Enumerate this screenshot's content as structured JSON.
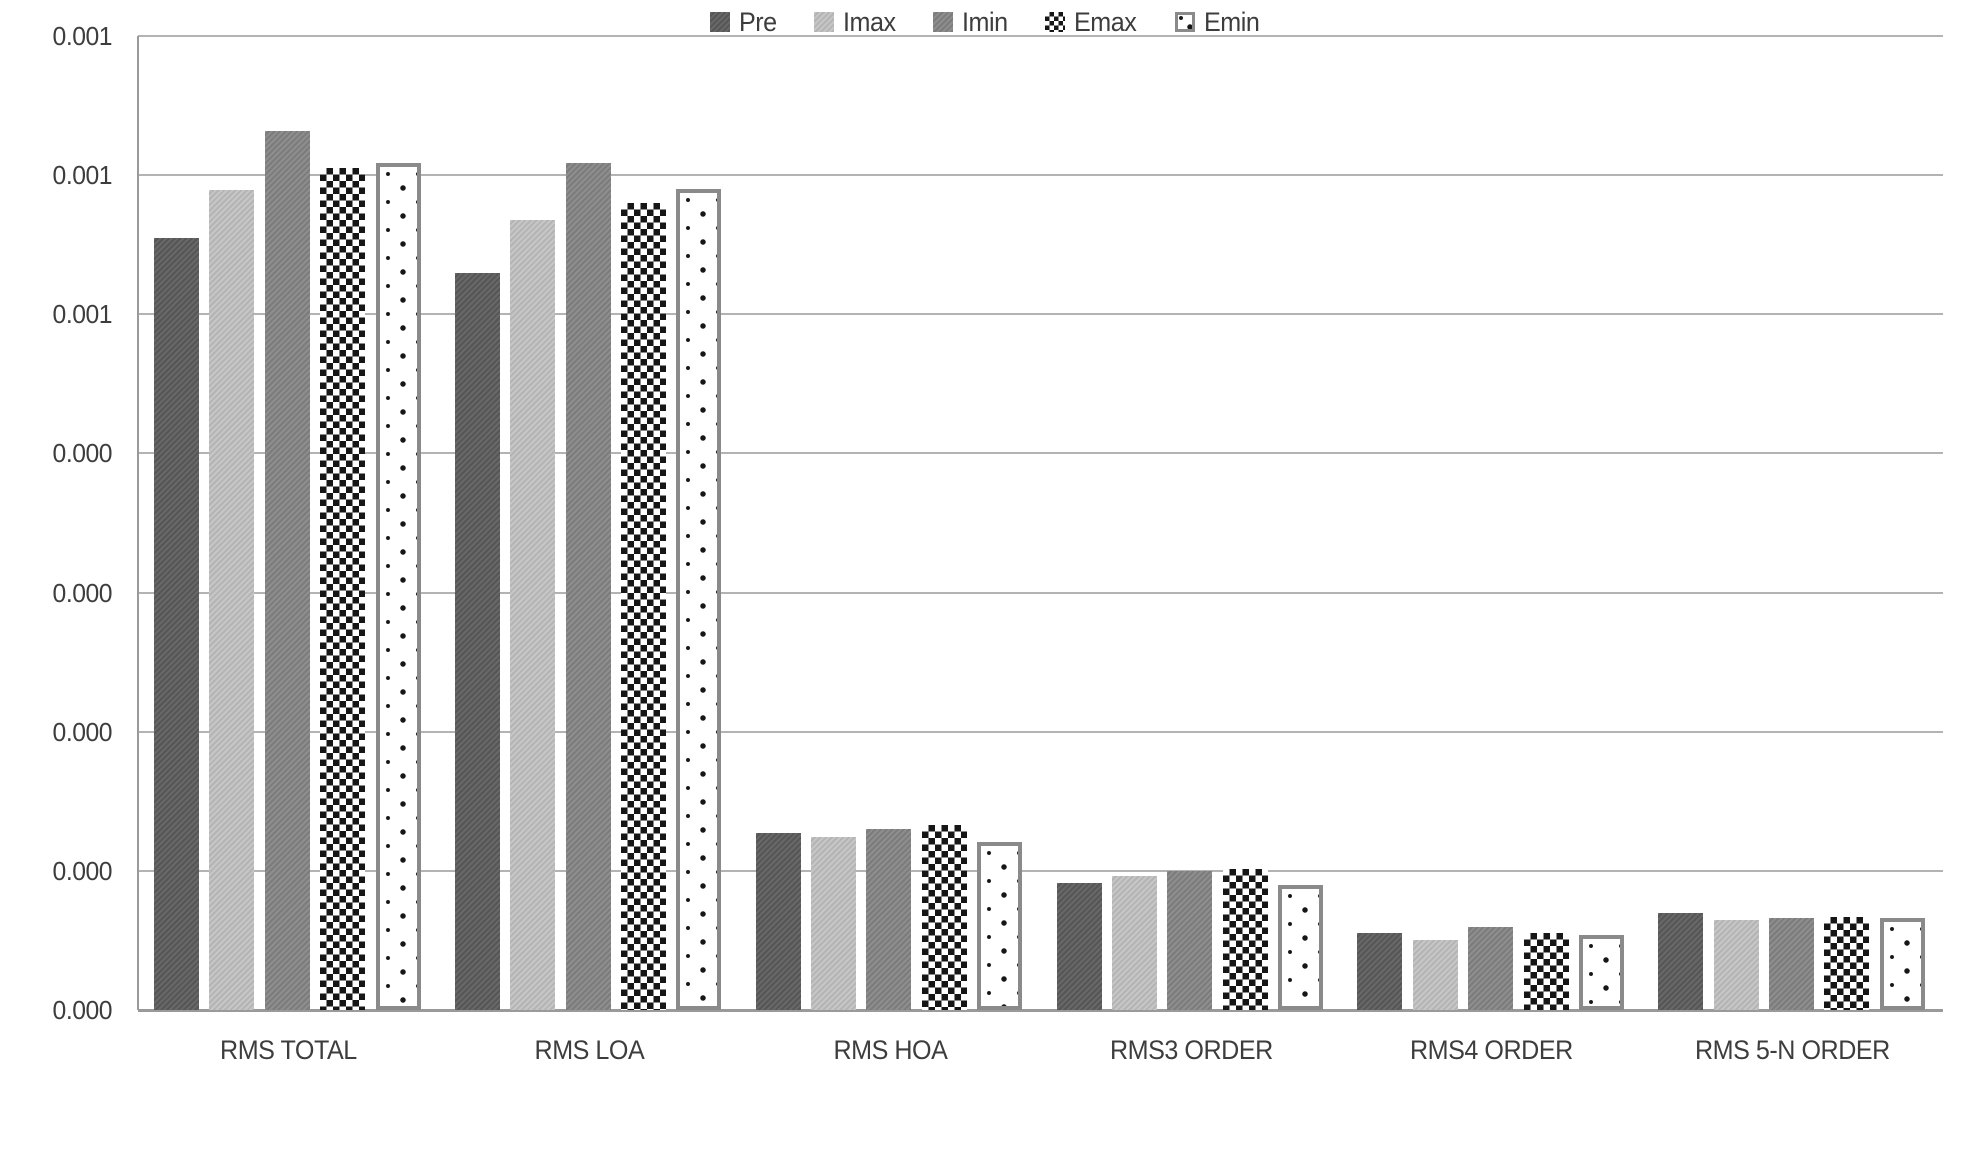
{
  "chart_data": {
    "type": "bar",
    "title": "",
    "xlabel": "",
    "ylabel": "",
    "categories": [
      "RMS TOTAL",
      "RMS LOA",
      "RMS HOA",
      "RMS3 ORDER",
      "RMS4 ORDER",
      "RMS 5-N ORDER"
    ],
    "series": [
      {
        "name": "Pre",
        "style": "solid_dark",
        "values": [
          0.000555,
          0.00053,
          0.000127,
          9.1e-05,
          5.5e-05,
          7e-05
        ]
      },
      {
        "name": "Imax",
        "style": "solid_light",
        "values": [
          0.000589,
          0.000568,
          0.000124,
          9.6e-05,
          5e-05,
          6.5e-05
        ]
      },
      {
        "name": "Imin",
        "style": "solid_medium",
        "values": [
          0.000632,
          0.000609,
          0.00013,
          0.0001,
          6e-05,
          6.6e-05
        ]
      },
      {
        "name": "Emax",
        "style": "checkerboard",
        "values": [
          0.000605,
          0.00058,
          0.000133,
          0.000101,
          5.5e-05,
          6.7e-05
        ]
      },
      {
        "name": "Emin",
        "style": "dotted_outline",
        "values": [
          0.000609,
          0.00059,
          0.000121,
          9e-05,
          5.4e-05,
          6.6e-05
        ]
      }
    ],
    "y_axis": {
      "min": 0,
      "max": 0.0007,
      "tick_step": 0.0001,
      "tick_labels_top_to_bottom": [
        "0.001",
        "0.001",
        "0.001",
        "0.000",
        "0.000",
        "0.000",
        "0.000",
        "0.000"
      ],
      "label_format": "rounded to 3 decimals"
    },
    "legend": {
      "position": "bottom",
      "entries": [
        "Pre",
        "Imax",
        "Imin",
        "Emax",
        "Emin"
      ]
    },
    "grid": true
  },
  "colors": {
    "series_dark": "#5c5c5c",
    "series_light": "#c2c2c2",
    "series_medium": "#858585",
    "pattern_ink": "#161616",
    "emin_border": "#8a8a8a",
    "gridline": "#b3b3b3",
    "axis_line": "#9a9a9a",
    "text": "#3d3d3d",
    "background": "#ffffff"
  }
}
